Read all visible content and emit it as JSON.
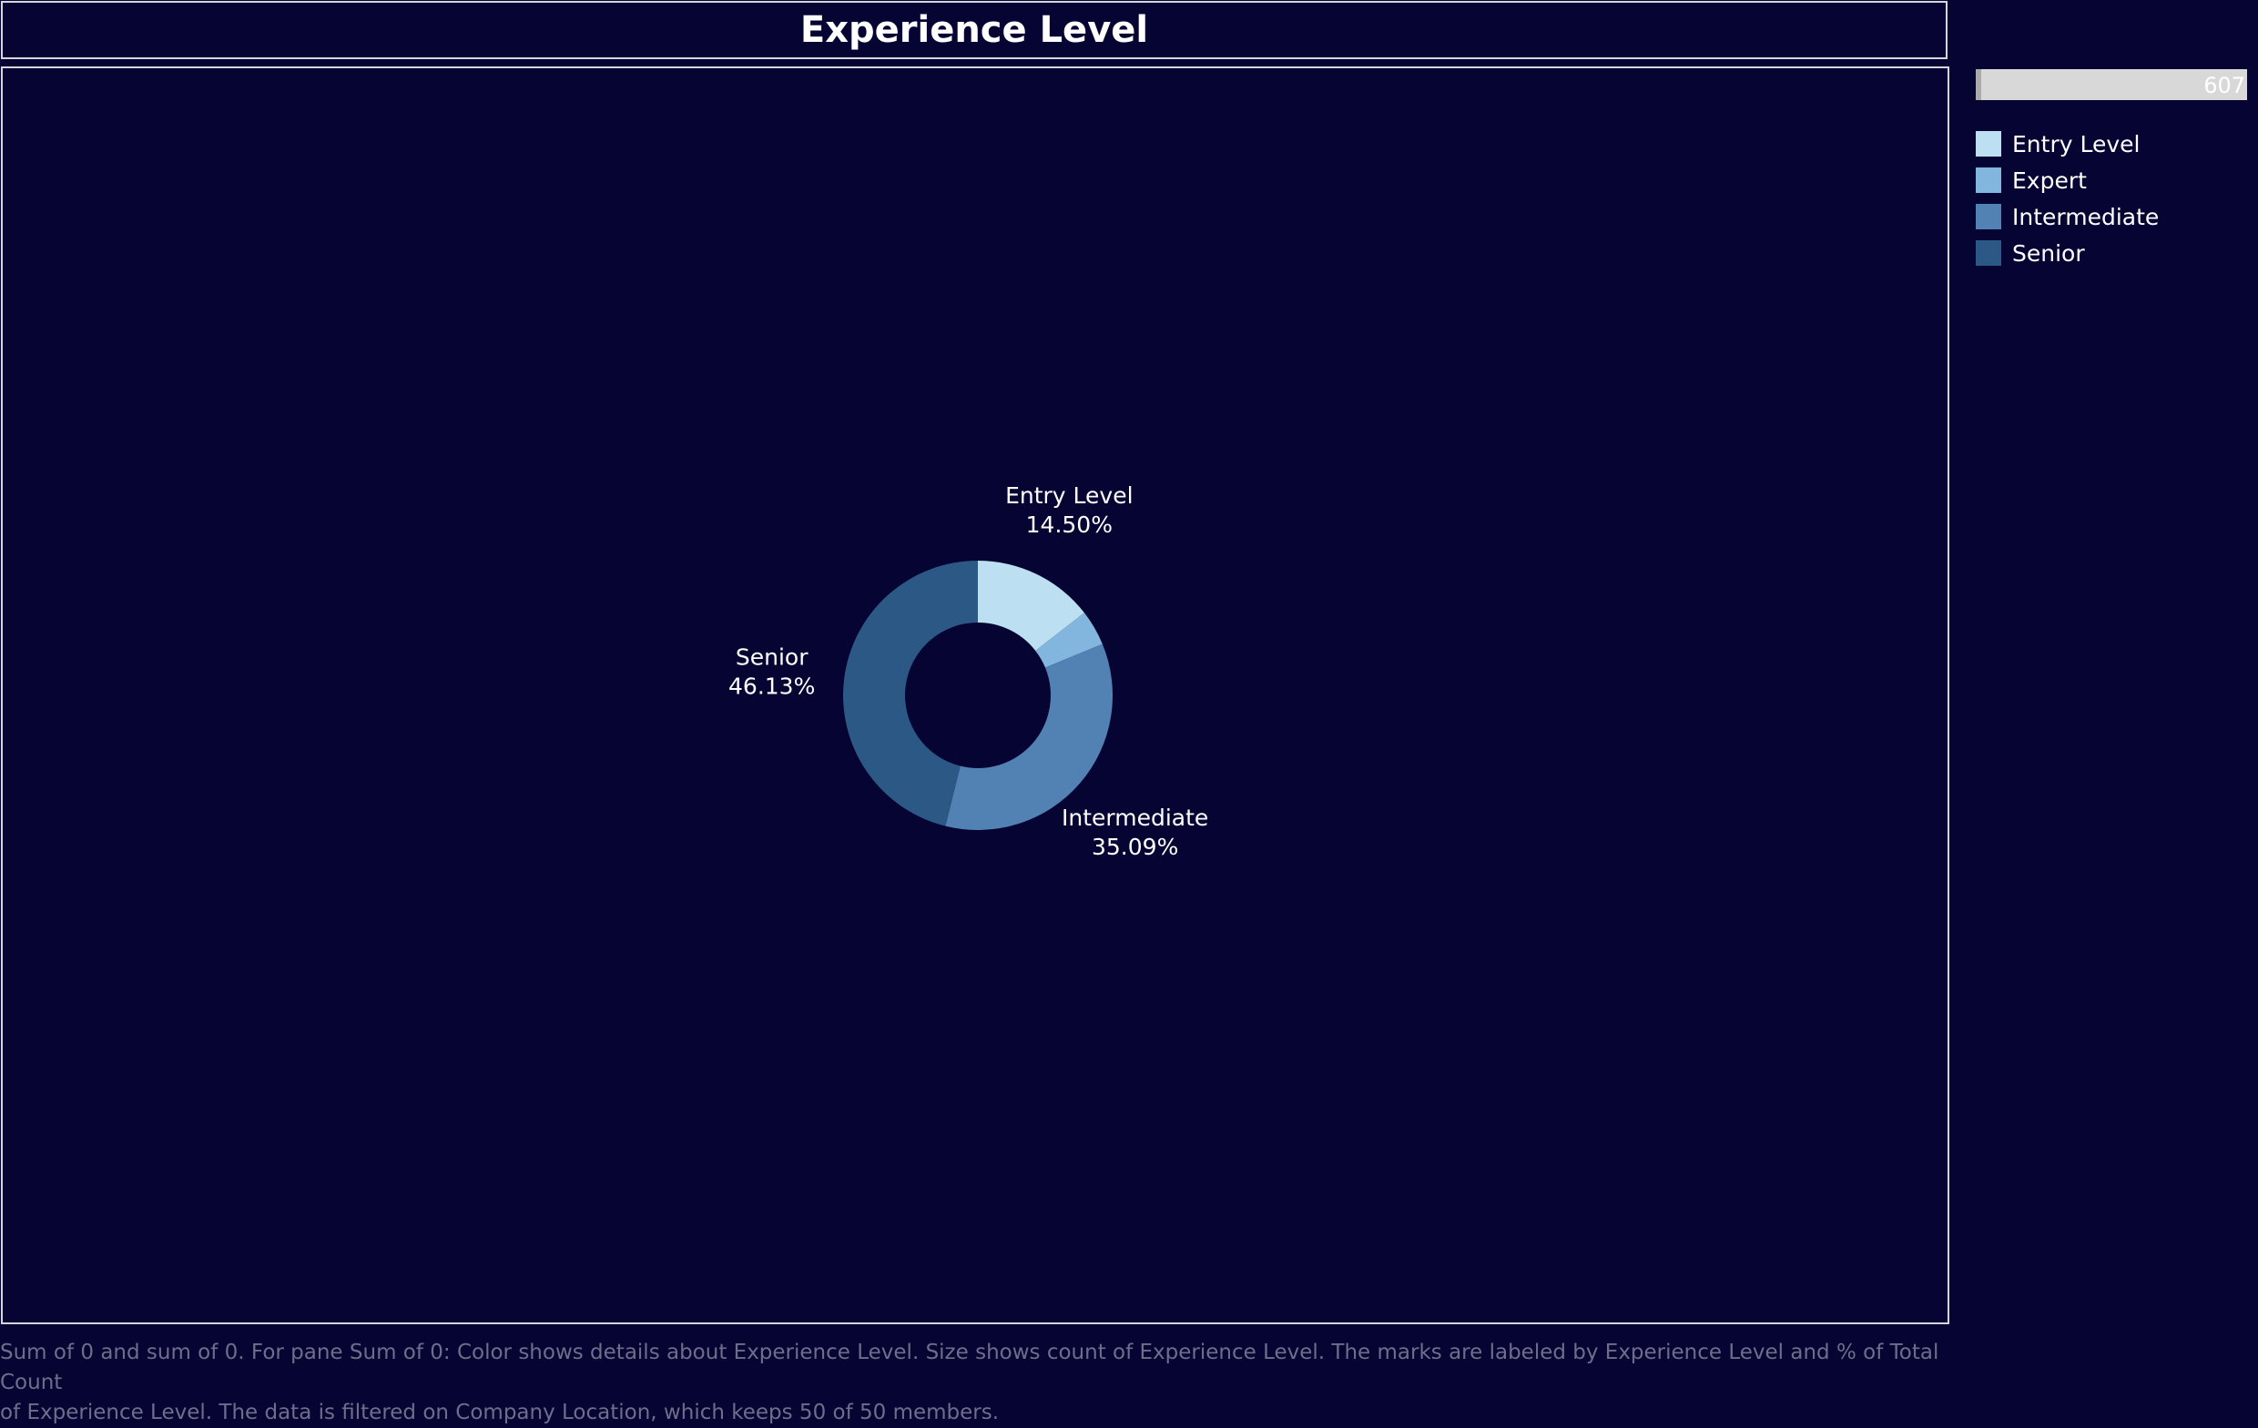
{
  "title": "Experience Level",
  "size_legend": {
    "value": "607"
  },
  "colors": {
    "background": "#050433",
    "border": "#d6d6de",
    "footnote": "#6e6e8c"
  },
  "chart_data": {
    "type": "pie",
    "title": "Experience Level",
    "legend_position": "top-right",
    "categories": [
      "Entry Level",
      "Expert",
      "Intermediate",
      "Senior"
    ],
    "values": [
      14.5,
      4.28,
      35.09,
      46.13
    ],
    "colors": [
      "#bcdff2",
      "#83b6de",
      "#5282b4",
      "#2b5884"
    ],
    "labels": [
      {
        "name": "Entry Level",
        "pct": "14.50%"
      },
      {
        "name": "",
        "pct": ""
      },
      {
        "name": "Intermediate",
        "pct": "35.09%"
      },
      {
        "name": "Senior",
        "pct": "46.13%"
      }
    ]
  },
  "footnote": {
    "line1": "Sum of 0 and sum of 0.  For pane Sum of 0:  Color shows details about Experience Level.  Size shows count of Experience Level.  The marks are labeled by Experience Level and % of Total Count",
    "line2": "of Experience Level. The data is filtered on Company Location, which keeps 50 of 50 members."
  }
}
